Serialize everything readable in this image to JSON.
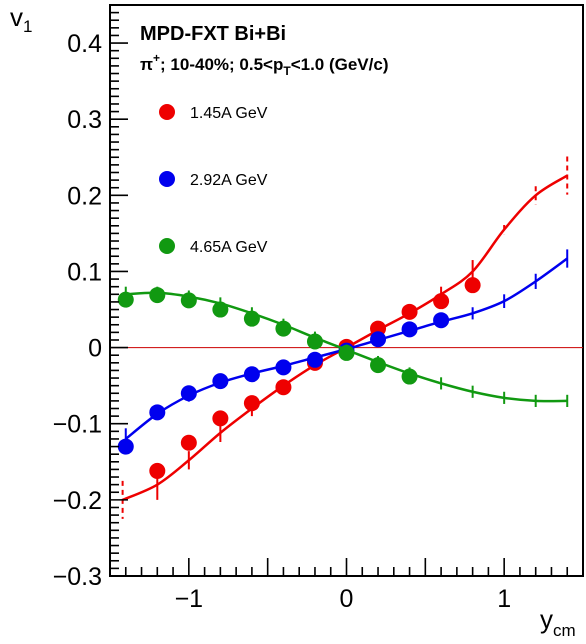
{
  "chart_data": {
    "type": "scatter",
    "title": "MPD-FXT Bi+Bi",
    "subtitle": {
      "particle": "π",
      "particle_sup": "+",
      "part1": "; 10-40%; 0.5<p",
      "pt_sub": "T",
      "part2": "<1.0 (GeV/c)"
    },
    "ylabel": {
      "main": "v",
      "sub": "1"
    },
    "xlabel": {
      "main": "y",
      "sub": "cm"
    },
    "xlim": [
      -1.5,
      1.5
    ],
    "ylim": [
      -0.3,
      0.45
    ],
    "x_ticks": [
      {
        "value": -1,
        "label": "−1"
      },
      {
        "value": 0,
        "label": "0"
      },
      {
        "value": 1,
        "label": "1"
      }
    ],
    "y_ticks": [
      {
        "value": -0.3,
        "label": "−0.3"
      },
      {
        "value": -0.2,
        "label": "−0.2"
      },
      {
        "value": -0.1,
        "label": "−0.1"
      },
      {
        "value": 0,
        "label": "0"
      },
      {
        "value": 0.1,
        "label": "0.1"
      },
      {
        "value": 0.2,
        "label": "0.2"
      },
      {
        "value": 0.3,
        "label": "0.3"
      },
      {
        "value": 0.4,
        "label": "0.4"
      }
    ],
    "reference_line": {
      "y": 0,
      "color": "#cc0000"
    },
    "legend_position": "top-left",
    "series": [
      {
        "name": "1.45A GeV",
        "color": "#ee0000",
        "x": [
          -1.4,
          -1.2,
          -1.0,
          -0.8,
          -0.6,
          -0.4,
          -0.2,
          0.0,
          0.2,
          0.4,
          0.6,
          0.8
        ],
        "y": [
          -0.195,
          -0.162,
          -0.125,
          -0.093,
          -0.073,
          -0.052,
          -0.02,
          0.001,
          0.025,
          0.047,
          0.061,
          0.082
        ],
        "markers": [
          false,
          true,
          true,
          true,
          true,
          true,
          true,
          true,
          true,
          true,
          true,
          true
        ],
        "curve_x": [
          -1.42,
          -1.2,
          -1.0,
          -0.8,
          -0.6,
          -0.4,
          -0.2,
          0.0,
          0.2,
          0.4,
          0.6,
          0.8,
          1.0,
          1.2,
          1.4
        ],
        "curve_y": [
          -0.2,
          -0.18,
          -0.148,
          -0.112,
          -0.08,
          -0.05,
          -0.023,
          0.0,
          0.023,
          0.045,
          0.07,
          0.1,
          0.155,
          0.2,
          0.226
        ],
        "curve_err": [
          0.025,
          0.02,
          0.012,
          0.012,
          0.01,
          0.008,
          0.006,
          0.005,
          0.006,
          0.008,
          0.01,
          0.015,
          0.006,
          0.012,
          0.025
        ],
        "curve_err_dashed": [
          true,
          false,
          false,
          false,
          false,
          false,
          false,
          false,
          false,
          false,
          false,
          false,
          true,
          true,
          true
        ]
      },
      {
        "name": "2.92A GeV",
        "color": "#0000ee",
        "x": [
          -1.4,
          -1.2,
          -1.0,
          -0.8,
          -0.6,
          -0.4,
          -0.2,
          0.0,
          0.2,
          0.4,
          0.6
        ],
        "y": [
          -0.13,
          -0.085,
          -0.06,
          -0.044,
          -0.035,
          -0.026,
          -0.016,
          -0.004,
          0.011,
          0.024,
          0.036
        ],
        "markers": [
          true,
          true,
          true,
          true,
          true,
          true,
          true,
          true,
          true,
          true,
          true
        ],
        "curve_x": [
          -1.4,
          -1.2,
          -1.0,
          -0.8,
          -0.6,
          -0.4,
          -0.2,
          0.0,
          0.2,
          0.4,
          0.6,
          0.8,
          1.0,
          1.2,
          1.4
        ],
        "curve_y": [
          -0.12,
          -0.087,
          -0.063,
          -0.046,
          -0.034,
          -0.024,
          -0.013,
          -0.002,
          0.01,
          0.022,
          0.034,
          0.045,
          0.061,
          0.087,
          0.117
        ],
        "curve_err": [
          0.014,
          0.008,
          0.008,
          0.007,
          0.007,
          0.007,
          0.007,
          0.006,
          0.007,
          0.007,
          0.007,
          0.008,
          0.009,
          0.01,
          0.012
        ],
        "curve_err_dashed": [
          false,
          false,
          false,
          false,
          false,
          false,
          false,
          false,
          false,
          false,
          false,
          false,
          false,
          false,
          false
        ]
      },
      {
        "name": "4.65A GeV",
        "color": "#119911",
        "x": [
          -1.4,
          -1.2,
          -1.0,
          -0.8,
          -0.6,
          -0.4,
          -0.2,
          0.0,
          0.2,
          0.4
        ],
        "y": [
          0.063,
          0.069,
          0.062,
          0.05,
          0.038,
          0.025,
          0.008,
          -0.007,
          -0.023,
          -0.038
        ],
        "markers": [
          true,
          true,
          true,
          true,
          true,
          true,
          true,
          true,
          true,
          true
        ],
        "curve_x": [
          -1.4,
          -1.2,
          -1.0,
          -0.8,
          -0.6,
          -0.4,
          -0.2,
          0.0,
          0.2,
          0.4,
          0.6,
          0.8,
          1.0,
          1.2,
          1.4
        ],
        "curve_y": [
          0.07,
          0.072,
          0.067,
          0.058,
          0.045,
          0.03,
          0.013,
          -0.003,
          -0.019,
          -0.034,
          -0.047,
          -0.058,
          -0.066,
          -0.07,
          -0.07
        ],
        "curve_err": [
          0.01,
          0.008,
          0.008,
          0.008,
          0.008,
          0.008,
          0.008,
          0.007,
          0.008,
          0.008,
          0.008,
          0.008,
          0.008,
          0.008,
          0.008
        ],
        "curve_err_dashed": [
          false,
          false,
          false,
          false,
          false,
          false,
          false,
          false,
          false,
          false,
          false,
          false,
          false,
          false,
          false
        ]
      }
    ]
  }
}
